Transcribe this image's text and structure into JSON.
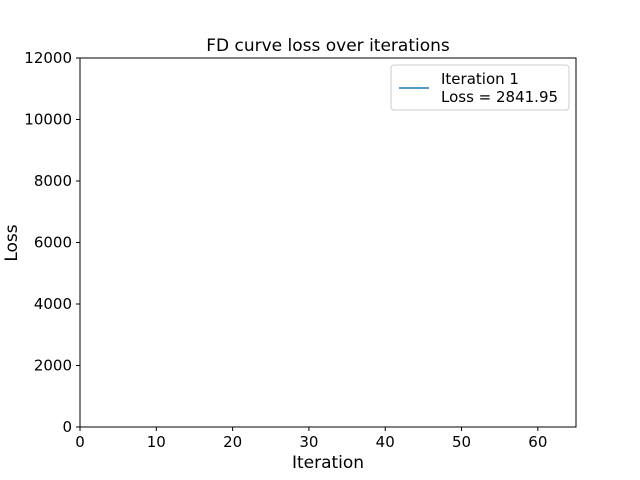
{
  "chart_data": {
    "type": "line",
    "title": "FD curve loss over iterations",
    "xlabel": "Iteration",
    "ylabel": "Loss",
    "xlim": [
      0,
      65
    ],
    "ylim": [
      0,
      12000
    ],
    "xticks": [
      0,
      10,
      20,
      30,
      40,
      50,
      60
    ],
    "yticks": [
      0,
      2000,
      4000,
      6000,
      8000,
      10000,
      12000
    ],
    "grid": false,
    "legend_position": "top-right",
    "series": [
      {
        "name": "Iteration 1\nLoss = 2841.95",
        "legend_lines": [
          "Iteration 1",
          "Loss = 2841.95"
        ],
        "color": "#1f77b4",
        "x": [
          1
        ],
        "y": [
          2841.95
        ]
      }
    ]
  }
}
